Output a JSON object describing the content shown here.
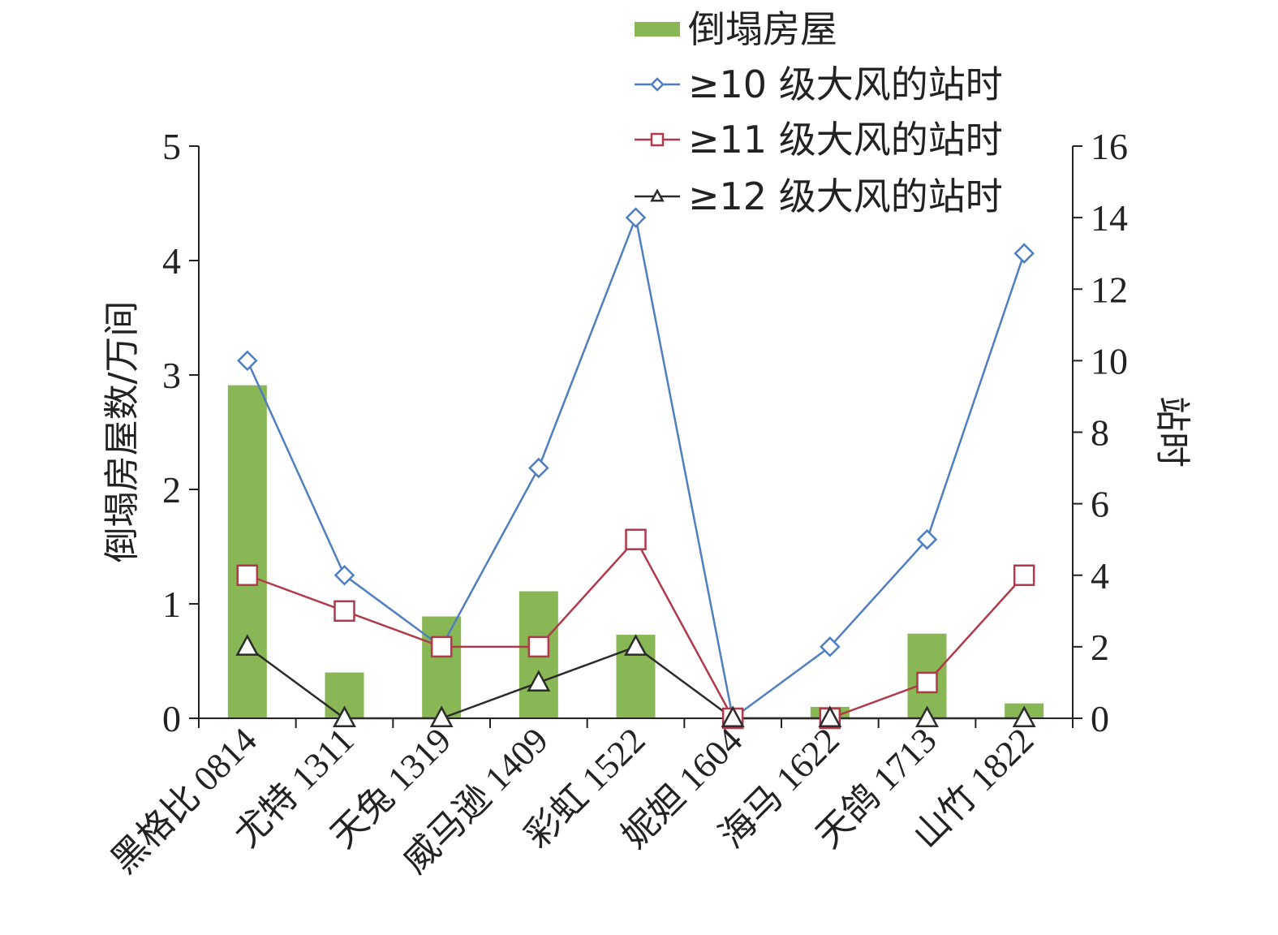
{
  "chart_data": {
    "type": "bar",
    "categories": [
      "黑格比 0814",
      "尤特 1311",
      "天兔 1319",
      "威马逊 1409",
      "彩虹 1522",
      "妮妲 1604",
      "海马 1622",
      "天鸽 1713",
      "山竹 1822"
    ],
    "bar_series": {
      "name": "倒塌房屋",
      "values": [
        2.91,
        0.4,
        0.89,
        1.11,
        0.73,
        0.0,
        0.1,
        0.74,
        0.13
      ],
      "color": "#8ab755"
    },
    "line_series": [
      {
        "name": "≥10 级大风的站时",
        "values": [
          10,
          4,
          2,
          7,
          14,
          0,
          2,
          5,
          13
        ],
        "color": "#4f7fc0",
        "marker": "diamond"
      },
      {
        "name": "≥11 级大风的站时",
        "values": [
          4,
          3,
          2,
          2,
          5,
          0,
          0,
          1,
          4
        ],
        "color": "#b0394a",
        "marker": "square"
      },
      {
        "name": "≥12 级大风的站时",
        "values": [
          2,
          0,
          0,
          1,
          2,
          0,
          0,
          0,
          0
        ],
        "color": "#2b2b2b",
        "marker": "triangle"
      }
    ],
    "ylabel_left": "倒塌房屋数/万间",
    "ylabel_right": "站时",
    "ylim_left": [
      0,
      5
    ],
    "yticks_left": [
      "0",
      "1",
      "2",
      "3",
      "4",
      "5"
    ],
    "ylim_right": [
      0,
      16
    ],
    "yticks_right": [
      "0",
      "2",
      "4",
      "6",
      "8",
      "10",
      "12",
      "14",
      "16"
    ],
    "grid": false,
    "legend_position": "top-right"
  }
}
